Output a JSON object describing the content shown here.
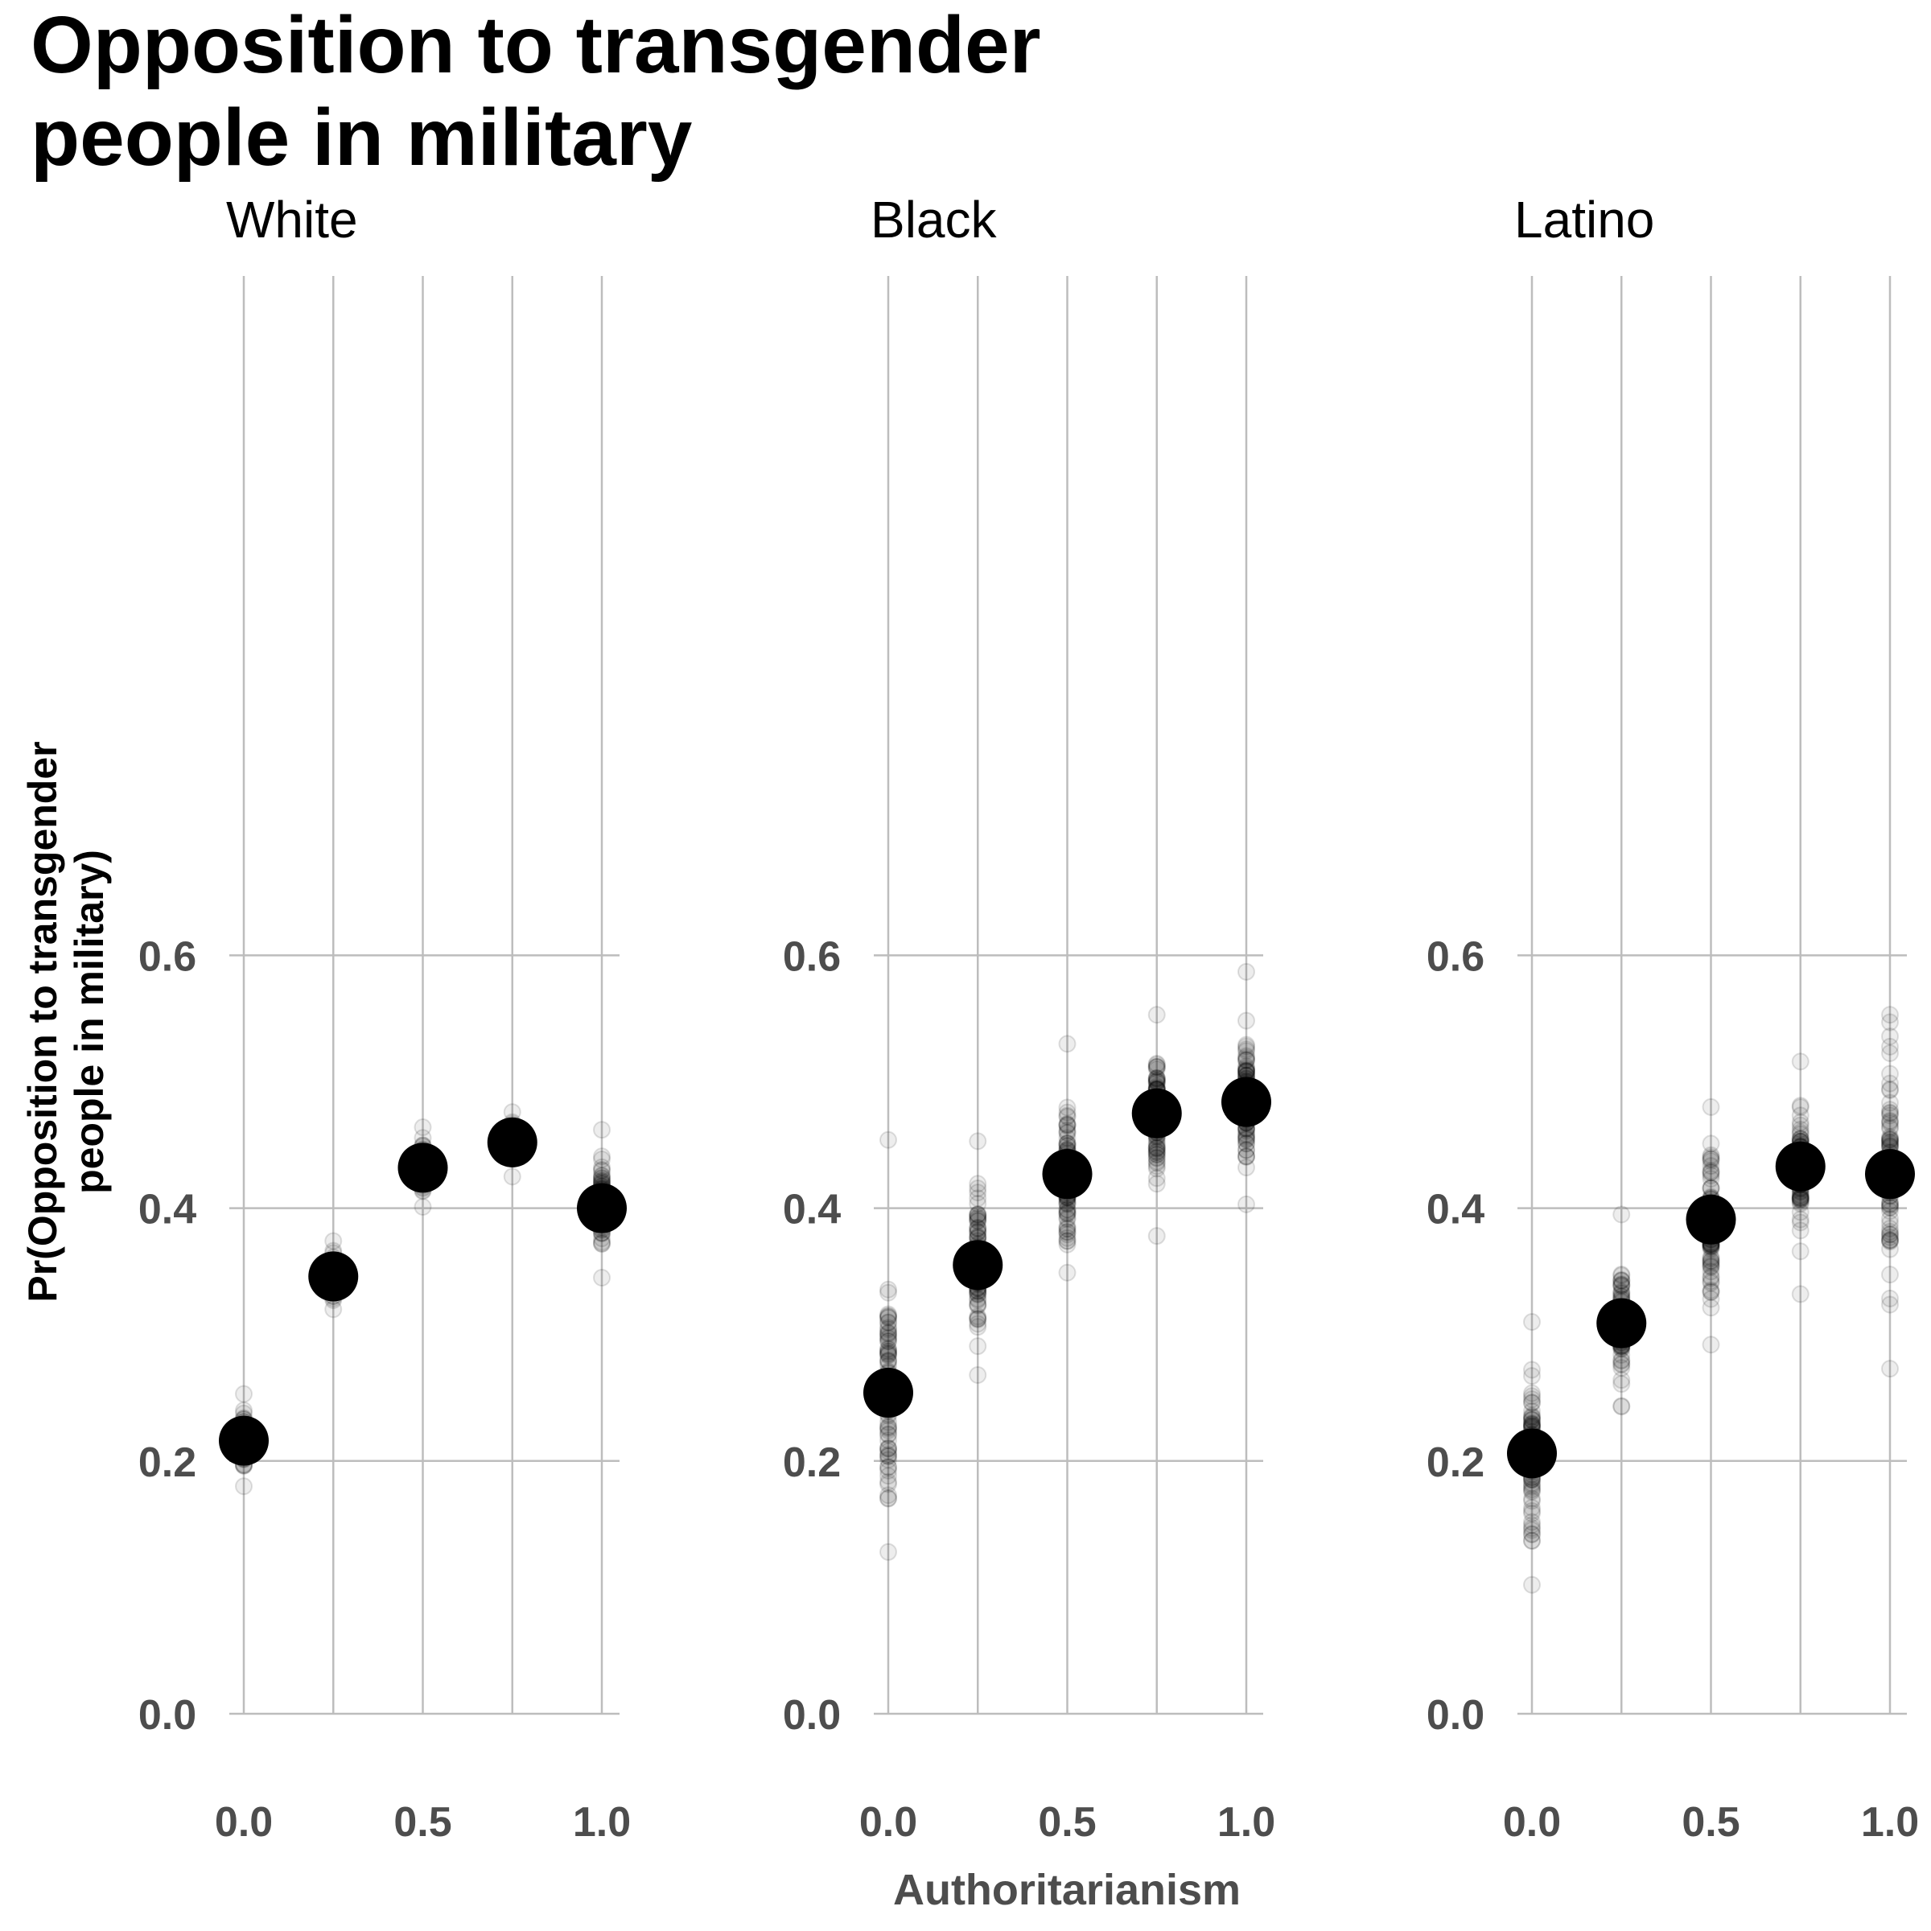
{
  "chart_data": {
    "type": "scatter",
    "title": "Opposition to transgender people in military",
    "title_lines": [
      "Opposition to transgender",
      "people in military"
    ],
    "xlabel": "Authoritarianism",
    "ylabel_lines": [
      "Pr(Opposition to transgender",
      "people in military)"
    ],
    "xlim": [
      0,
      1
    ],
    "ylim": [
      0,
      0.6
    ],
    "x_ticks": [
      "0.0",
      "0.5",
      "1.0"
    ],
    "y_ticks": [
      "0.0",
      "0.2",
      "0.4",
      "0.6"
    ],
    "grid": true,
    "x": [
      0,
      0.25,
      0.5,
      0.75,
      1
    ],
    "series": [
      {
        "name": "White",
        "means": [
          0.216,
          0.346,
          0.432,
          0.452,
          0.4
        ],
        "sim_ranges": [
          [
            0.18,
            0.253
          ],
          [
            0.32,
            0.374
          ],
          [
            0.401,
            0.464
          ],
          [
            0.425,
            0.476
          ],
          [
            0.345,
            0.462
          ]
        ]
      },
      {
        "name": "Black",
        "means": [
          0.254,
          0.355,
          0.427,
          0.475,
          0.484
        ],
        "sim_ranges": [
          [
            0.128,
            0.454
          ],
          [
            0.268,
            0.453
          ],
          [
            0.349,
            0.53
          ],
          [
            0.378,
            0.553
          ],
          [
            0.403,
            0.587
          ]
        ]
      },
      {
        "name": "Latino",
        "means": [
          0.206,
          0.309,
          0.391,
          0.433,
          0.427
        ],
        "sim_ranges": [
          [
            0.102,
            0.31
          ],
          [
            0.243,
            0.395
          ],
          [
            0.292,
            0.48
          ],
          [
            0.332,
            0.516
          ],
          [
            0.273,
            0.553
          ]
        ]
      }
    ],
    "colors": {
      "mean_point": "#000000",
      "sim_point": "#000000",
      "grid": "#bdbdbd",
      "tick_text": "#4d4d4d"
    }
  }
}
